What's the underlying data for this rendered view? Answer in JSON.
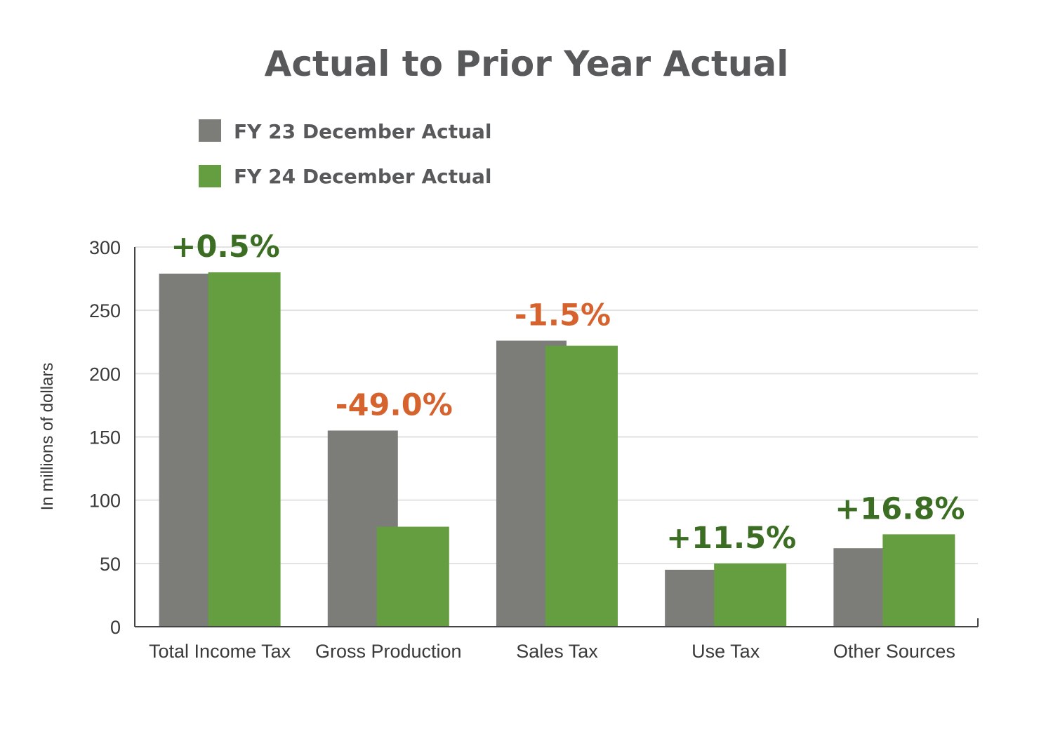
{
  "chart_data": {
    "type": "bar",
    "title": "Actual to Prior Year Actual",
    "ylabel": "In millions of dollars",
    "ylim": [
      0,
      300
    ],
    "yticks": [
      "0",
      "50",
      "100",
      "150",
      "200",
      "250",
      "300"
    ],
    "grid": true,
    "legend_position": "top-left",
    "categories": [
      "Total Income Tax",
      "Gross Production",
      "Sales Tax",
      "Use Tax",
      "Other Sources"
    ],
    "series": [
      {
        "name": "FY 23 December Actual",
        "color": "#7c7d78",
        "values": [
          279,
          155,
          226,
          45,
          62
        ]
      },
      {
        "name": "FY 24 December Actual",
        "color": "#659d41",
        "values": [
          280,
          79,
          222,
          50,
          73
        ]
      }
    ],
    "annotations": [
      {
        "text": "+0.5%",
        "category": "Total Income Tax",
        "color": "#3b6e22"
      },
      {
        "text": "-49.0%",
        "category": "Gross Production",
        "color": "#d6622d"
      },
      {
        "text": "-1.5%",
        "category": "Sales Tax",
        "color": "#d6622d"
      },
      {
        "text": "+11.5%",
        "category": "Use Tax",
        "color": "#3b6e22"
      },
      {
        "text": "+16.8%",
        "category": "Other Sources",
        "color": "#3b6e22"
      }
    ]
  }
}
